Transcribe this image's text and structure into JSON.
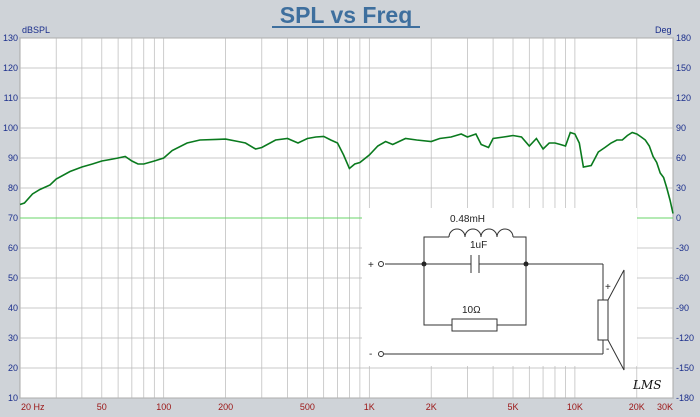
{
  "chart_data": {
    "type": "line",
    "title": "SPL vs Freq",
    "ylabel_left": "dBSPL",
    "ylabel_right": "Deg",
    "x_scale": "log",
    "xlim": [
      20,
      30000
    ],
    "ylim_left": [
      10,
      130
    ],
    "ylim_right": [
      -180,
      180
    ],
    "grid": true,
    "x_tick_labels": [
      {
        "value": 20,
        "label": "20 Hz"
      },
      {
        "value": 50,
        "label": "50"
      },
      {
        "value": 100,
        "label": "100"
      },
      {
        "value": 200,
        "label": "200"
      },
      {
        "value": 500,
        "label": "500"
      },
      {
        "value": 1000,
        "label": "1K"
      },
      {
        "value": 2000,
        "label": "2K"
      },
      {
        "value": 5000,
        "label": "5K"
      },
      {
        "value": 10000,
        "label": "10K"
      },
      {
        "value": 20000,
        "label": "20K"
      },
      {
        "value": 30000,
        "label": "30K"
      }
    ],
    "y_left_ticks": [
      130,
      120,
      110,
      100,
      90,
      80,
      70,
      60,
      50,
      40,
      30,
      20,
      10
    ],
    "y_right_ticks": [
      180,
      150,
      120,
      90,
      60,
      30,
      0,
      -30,
      -60,
      -90,
      -120,
      -150,
      -180
    ],
    "reference_line_db": 70,
    "series": [
      {
        "color": "#0a7a1e",
        "x": [
          20,
          21,
          23,
          25,
          28,
          30,
          35,
          40,
          45,
          50,
          55,
          60,
          65,
          70,
          75,
          80,
          90,
          100,
          110,
          130,
          150,
          180,
          200,
          230,
          250,
          280,
          300,
          350,
          400,
          450,
          500,
          550,
          600,
          650,
          700,
          750,
          800,
          850,
          900,
          1000,
          1100,
          1200,
          1300,
          1500,
          1700,
          2000,
          2200,
          2500,
          2800,
          3000,
          3300,
          3500,
          3800,
          4000,
          4500,
          5000,
          5500,
          6000,
          6500,
          7000,
          7500,
          8000,
          8500,
          9000,
          9500,
          10000,
          10500,
          11000,
          12000,
          13000,
          14000,
          15000,
          16000,
          17000,
          18000,
          19000,
          20000,
          21000,
          22000,
          23000,
          24000,
          25000,
          26000,
          27000,
          28000,
          29000,
          30000
        ],
        "y": [
          74.5,
          75,
          78,
          79.5,
          81,
          83,
          85.5,
          87,
          88,
          89,
          89.5,
          90,
          90.5,
          89,
          88,
          88,
          89,
          90,
          92.5,
          95,
          96,
          96.2,
          96.3,
          95.5,
          95,
          93,
          93.5,
          96,
          96.5,
          95,
          96.5,
          97,
          97.2,
          96,
          95,
          91,
          86.5,
          88,
          88.5,
          91,
          94,
          95.5,
          94.5,
          96.5,
          96,
          95.5,
          96.5,
          97,
          98,
          97,
          98,
          94.5,
          93.5,
          96.5,
          97,
          97.5,
          97,
          94,
          96.5,
          93,
          95,
          95,
          94.5,
          94,
          98.5,
          98,
          95,
          87,
          87.5,
          92,
          93.5,
          95,
          96,
          96,
          97.5,
          98.5,
          98,
          97,
          96,
          94,
          90.5,
          88.5,
          85,
          83.5,
          80,
          76,
          71.5
        ]
      }
    ],
    "inset_schematic": {
      "inductor_label": "0.48mH",
      "capacitor_label": "1uF",
      "resistor_label": "10Ω",
      "plus_sign": "+",
      "minus_sign": "-"
    },
    "signature": "LMS"
  }
}
